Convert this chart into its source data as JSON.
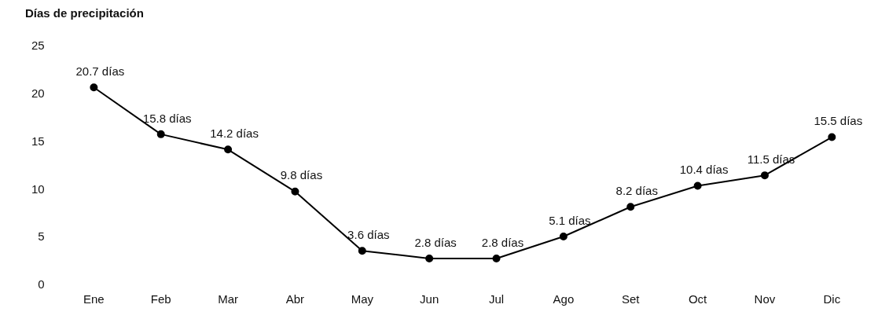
{
  "chart_data": {
    "type": "line",
    "title": "Días de precipitación",
    "categories": [
      "Ene",
      "Feb",
      "Mar",
      "Abr",
      "May",
      "Jun",
      "Jul",
      "Ago",
      "Set",
      "Oct",
      "Nov",
      "Dic"
    ],
    "series": [
      {
        "color": "#000000",
        "values": [
          20.7,
          15.8,
          14.2,
          9.8,
          3.6,
          2.8,
          2.8,
          5.1,
          8.2,
          10.4,
          11.5,
          15.5
        ],
        "value_labels": [
          "20.7 días",
          "15.8 días",
          "14.2 días",
          "9.8 días",
          "3.6 días",
          "2.8 días",
          "2.8 días",
          "5.1 días",
          "8.2 días",
          "10.4 días",
          "11.5 días",
          "15.5 días"
        ]
      }
    ],
    "ylim": [
      0,
      25
    ],
    "yticks": [
      0,
      5,
      10,
      15,
      20,
      25
    ],
    "grid": false,
    "legend": false,
    "marker": "circle",
    "line_style": "solid"
  }
}
